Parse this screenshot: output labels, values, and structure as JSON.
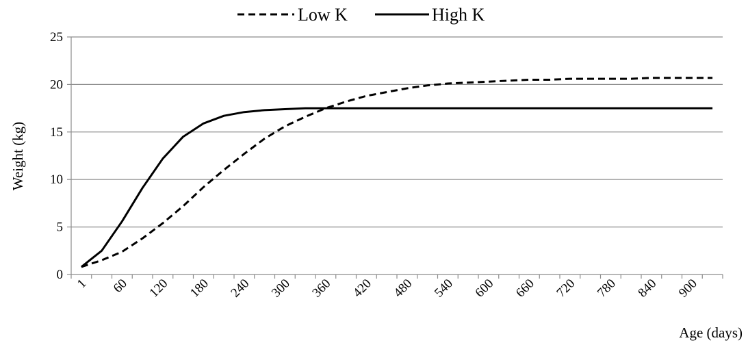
{
  "chart_data": {
    "type": "line",
    "title": "",
    "xlabel": "Age (days)",
    "ylabel": "Weight (kg)",
    "ylim": [
      0,
      25
    ],
    "yticks": [
      0,
      5,
      10,
      15,
      20,
      25
    ],
    "x_tick_labels": [
      "1",
      "60",
      "120",
      "180",
      "240",
      "300",
      "360",
      "420",
      "480",
      "540",
      "600",
      "660",
      "720",
      "780",
      "840",
      "900"
    ],
    "x": [
      1,
      30,
      60,
      90,
      120,
      150,
      180,
      210,
      240,
      270,
      300,
      330,
      360,
      390,
      420,
      450,
      480,
      510,
      540,
      570,
      600,
      630,
      660,
      690,
      720,
      750,
      780,
      810,
      840,
      870,
      900,
      930
    ],
    "grid": "horizontal",
    "legend": "top-center",
    "series": [
      {
        "name": "Low K",
        "style": "dashed",
        "color": "#000000",
        "values": [
          0.8,
          1.5,
          2.4,
          3.8,
          5.4,
          7.2,
          9.2,
          11.0,
          12.7,
          14.3,
          15.6,
          16.6,
          17.5,
          18.2,
          18.8,
          19.2,
          19.6,
          19.9,
          20.1,
          20.2,
          20.3,
          20.4,
          20.5,
          20.5,
          20.6,
          20.6,
          20.6,
          20.6,
          20.7,
          20.7,
          20.7,
          20.7
        ]
      },
      {
        "name": "High K",
        "style": "solid",
        "color": "#000000",
        "values": [
          0.8,
          2.5,
          5.6,
          9.1,
          12.2,
          14.5,
          15.9,
          16.7,
          17.1,
          17.3,
          17.4,
          17.5,
          17.5,
          17.5,
          17.5,
          17.5,
          17.5,
          17.5,
          17.5,
          17.5,
          17.5,
          17.5,
          17.5,
          17.5,
          17.5,
          17.5,
          17.5,
          17.5,
          17.5,
          17.5,
          17.5,
          17.5
        ]
      }
    ]
  }
}
